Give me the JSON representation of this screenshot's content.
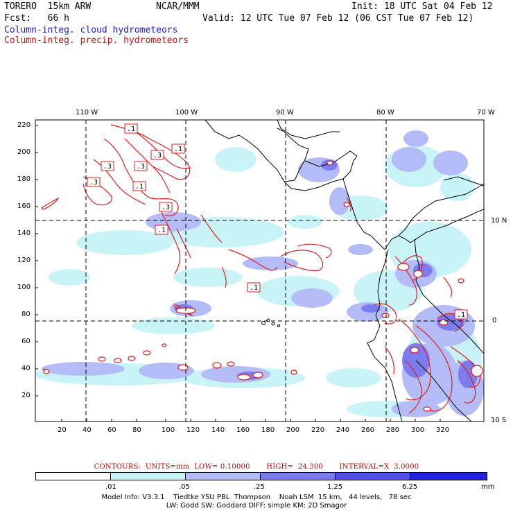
{
  "header": {
    "model_name": "TORERO  15km ARW",
    "center": "NCAR/MMM",
    "init": "Init: 18 UTC Sat 04 Feb 12",
    "fcst": "Fcst:   66 h",
    "valid": "Valid: 12 UTC Tue 07 Feb 12 (06 CST Tue 07 Feb 12)",
    "field1": "Column-integ. cloud hydrometeors",
    "field2": "Column-integ. precip. hydrometeors"
  },
  "colors": {
    "field1_text": "#1a1ad0",
    "field2_text": "#d01010",
    "contour": "#e01a1a",
    "coast": "#000000",
    "grid": "#000000"
  },
  "axes": {
    "lon_labels": [
      "110 W",
      "100 W",
      "90 W",
      "80 W",
      "70 W"
    ],
    "lat_labels_right": [
      "10 N",
      "0",
      "10 S"
    ],
    "y_ticks": [
      "220",
      "200",
      "180",
      "160",
      "140",
      "120",
      "100",
      "80",
      "60",
      "40",
      "20"
    ],
    "x_ticks": [
      "20",
      "40",
      "60",
      "80",
      "100",
      "120",
      "140",
      "160",
      "180",
      "200",
      "220",
      "240",
      "260",
      "280",
      "300",
      "320"
    ]
  },
  "contour_labels": [
    ".1",
    ".1",
    ".3",
    ".3",
    ".3",
    ".3",
    ".1",
    ".3",
    ".1",
    ".1",
    ".1"
  ],
  "contour_info": "CONTOURS:  UNITS=mm  LOW= 0.10000       HIGH=  24.300       INTERVAL=X  3.0000",
  "legend": {
    "labels": [
      ".01",
      ".05",
      ".25",
      "1.25",
      "6.25"
    ],
    "unit": "mm",
    "colors": [
      "#ffffff",
      "#c8f4f8",
      "#b4bcf8",
      "#7c7cf0",
      "#5050e8",
      "#2424e0"
    ]
  },
  "model_info": {
    "line1": "Model Info: V3.3.1    Tiedtke YSU PBL  Thompson    Noah LSM  15 km,   44 levels,   78 sec",
    "line2": "LW: Godd SW: Goddard DIFF: simple KM: 2D Smagor"
  }
}
